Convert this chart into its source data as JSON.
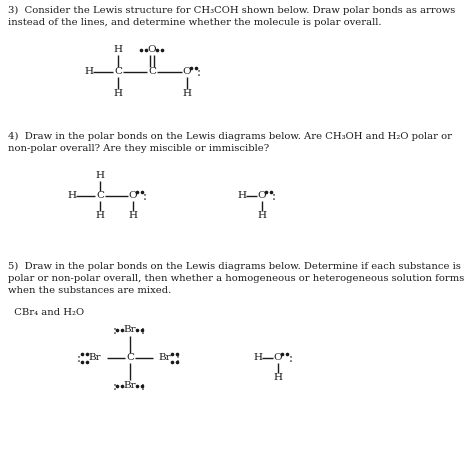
{
  "bg_color": "#ffffff",
  "text_color": "#1a1a1a",
  "font_size_body": 7.2,
  "font_size_atom": 7.5,
  "q3_text": "3)  Consider the Lewis structure for CH₃COH shown below. Draw polar bonds as arrows\ninstead of the lines, and determine whether the molecule is polar overall.",
  "q4_text": "4)  Draw in the polar bonds on the Lewis diagrams below. Are CH₃OH and H₂O polar or\nnon-polar overall? Are they miscible or immiscible?",
  "q5_text": "5)  Draw in the polar bonds on the Lewis diagrams below. Determine if each substance is\npolar or non-polar overall, then whether a homogeneous or heterogeneous solution forms\nwhen the substances are mixed.",
  "q5_sub": "  CBr₄ and H₂O"
}
